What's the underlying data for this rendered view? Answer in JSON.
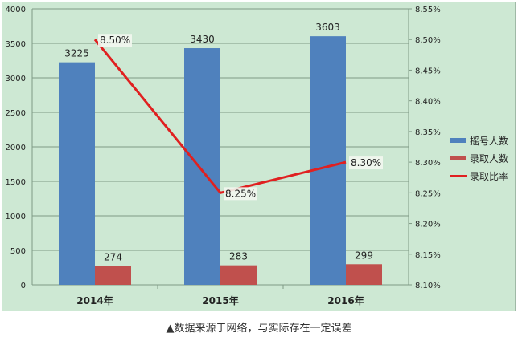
{
  "chart_data": {
    "type": "bar+line",
    "categories": [
      "2014年",
      "2015年",
      "2016年"
    ],
    "series": [
      {
        "name": "摇号人数",
        "type": "bar",
        "axis": "left",
        "color": "#4f81bd",
        "values": [
          3225,
          3430,
          3603
        ]
      },
      {
        "name": "录取人数",
        "type": "bar",
        "axis": "left",
        "color": "#c0504d",
        "values": [
          274,
          283,
          299
        ]
      },
      {
        "name": "录取比率",
        "type": "line",
        "axis": "right",
        "color": "#e02020",
        "values": [
          8.5,
          8.25,
          8.3
        ],
        "labels": [
          "8.50%",
          "8.25%",
          "8.30%"
        ]
      }
    ],
    "left_axis": {
      "ylim": [
        0,
        4000
      ],
      "ticks": [
        "0",
        "500",
        "1000",
        "1500",
        "2000",
        "2500",
        "3000",
        "3500",
        "4000"
      ]
    },
    "right_axis": {
      "ylim": [
        8.1,
        8.55
      ],
      "ticks": [
        "8.10%",
        "8.15%",
        "8.20%",
        "8.25%",
        "8.30%",
        "8.35%",
        "8.40%",
        "8.45%",
        "8.50%",
        "8.55%"
      ]
    },
    "grid": true,
    "legend_position": "right"
  },
  "legend": [
    {
      "label": "摇号人数",
      "kind": "bar",
      "color": "#4f81bd"
    },
    {
      "label": "录取人数",
      "kind": "bar",
      "color": "#c0504d"
    },
    {
      "label": "录取比率",
      "kind": "line",
      "color": "#e02020"
    }
  ],
  "caption": "▲数据来源于网络，与实际存在一定误差"
}
